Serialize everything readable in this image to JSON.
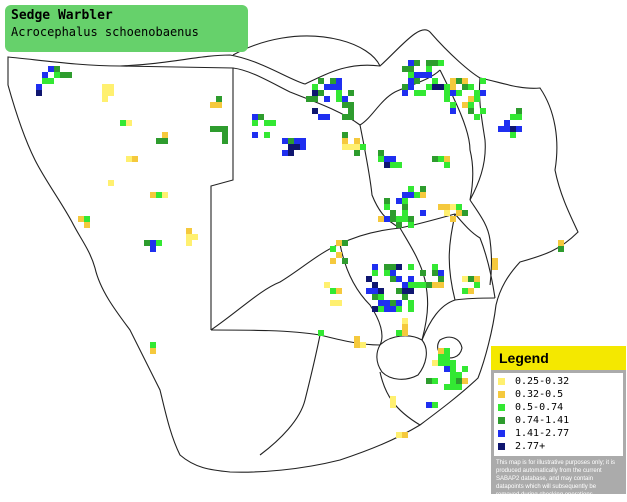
{
  "title": {
    "common_name": "Sedge Warbler",
    "scientific_name": "Acrocephalus schoenobaenus"
  },
  "legend": {
    "heading": "Legend",
    "items": [
      {
        "label": "0.25-0.32",
        "color": "#fff070"
      },
      {
        "label": "0.32-0.5",
        "color": "#f5c93d"
      },
      {
        "label": "0.5-0.74",
        "color": "#33e833"
      },
      {
        "label": "0.74-1.41",
        "color": "#2e9c2e"
      },
      {
        "label": "1.41-2.77",
        "color": "#1f2ff0"
      },
      {
        "label": "2.77+",
        "color": "#0f1670"
      }
    ],
    "disclaimer": "This map is for illustrative purposes only; it is produced automatically from the current SABAP2 database, and may contain datapoints which will subsequently be removed during checking operations."
  },
  "colors": {
    "border_lines": "#222222",
    "title_background": "#66d16b",
    "legend_header": "#f4e800"
  }
}
